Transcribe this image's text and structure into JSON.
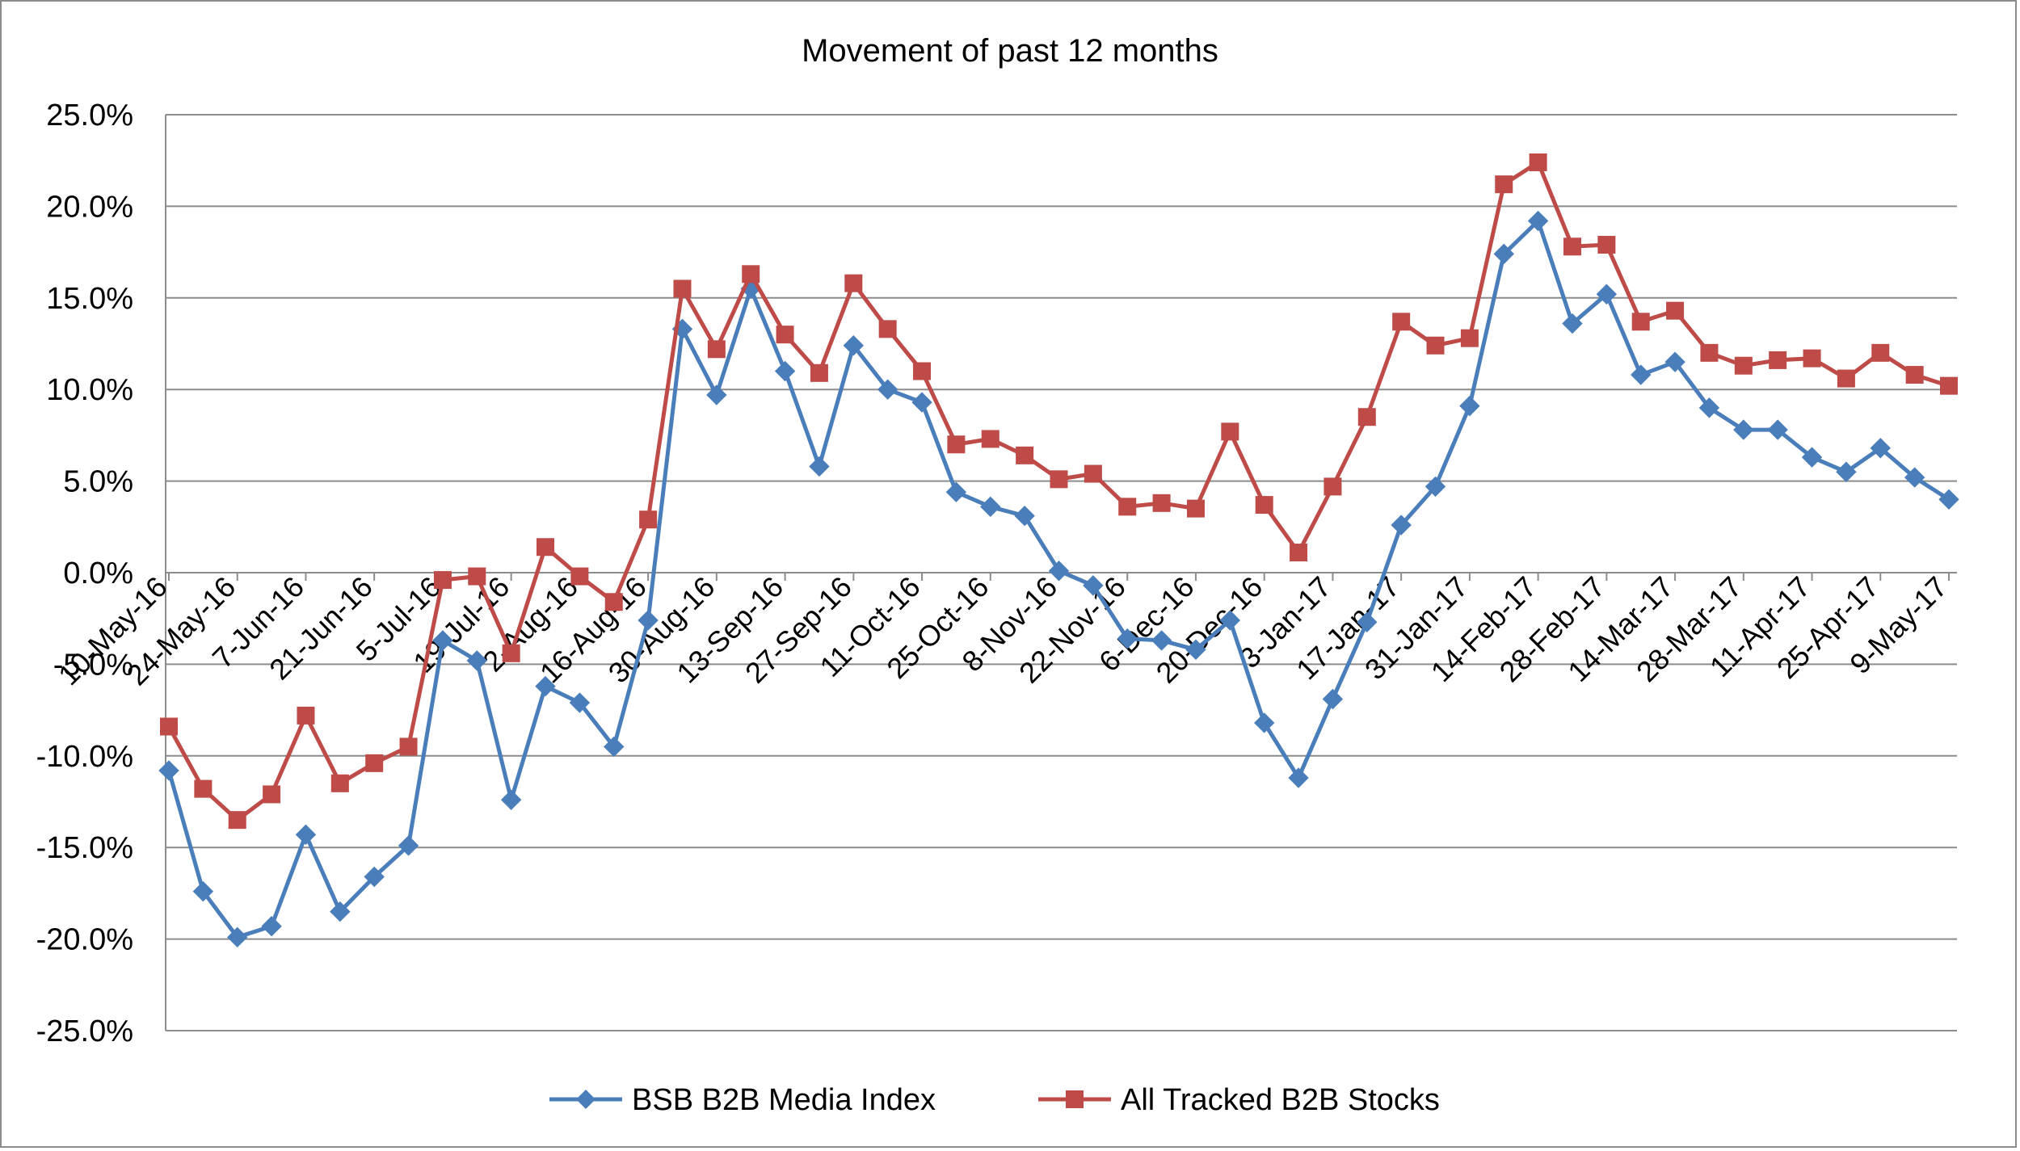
{
  "chart_data": {
    "type": "line",
    "title": "Movement of past 12 months",
    "xlabel": "",
    "ylabel": "",
    "ylim": [
      -25,
      25
    ],
    "ytick_step": 5,
    "ytick_labels": [
      "25.0%",
      "20.0%",
      "15.0%",
      "10.0%",
      "5.0%",
      "0.0%",
      "-5.0%",
      "-10.0%",
      "-15.0%",
      "-20.0%",
      "-25.0%"
    ],
    "x_tick_labels": [
      "10-May-16",
      "24-May-16",
      "7-Jun-16",
      "21-Jun-16",
      "5-Jul-16",
      "19-Jul-16",
      "2-Aug-16",
      "16-Aug-16",
      "30-Aug-16",
      "13-Sep-16",
      "27-Sep-16",
      "11-Oct-16",
      "25-Oct-16",
      "8-Nov-16",
      "22-Nov-16",
      "6-Dec-16",
      "20-Dec-16",
      "3-Jan-17",
      "17-Jan-17",
      "31-Jan-17",
      "14-Feb-17",
      "28-Feb-17",
      "14-Mar-17",
      "28-Mar-17",
      "11-Apr-17",
      "25-Apr-17",
      "9-May-17"
    ],
    "x": [
      "10-May-16",
      "17-May-16",
      "24-May-16",
      "31-May-16",
      "7-Jun-16",
      "14-Jun-16",
      "21-Jun-16",
      "28-Jun-16",
      "5-Jul-16",
      "12-Jul-16",
      "19-Jul-16",
      "26-Jul-16",
      "2-Aug-16",
      "9-Aug-16",
      "16-Aug-16",
      "23-Aug-16",
      "30-Aug-16",
      "6-Sep-16",
      "13-Sep-16",
      "20-Sep-16",
      "27-Sep-16",
      "4-Oct-16",
      "11-Oct-16",
      "18-Oct-16",
      "25-Oct-16",
      "1-Nov-16",
      "8-Nov-16",
      "15-Nov-16",
      "22-Nov-16",
      "29-Nov-16",
      "6-Dec-16",
      "13-Dec-16",
      "20-Dec-16",
      "27-Dec-16",
      "3-Jan-17",
      "10-Jan-17",
      "17-Jan-17",
      "24-Jan-17",
      "31-Jan-17",
      "7-Feb-17",
      "14-Feb-17",
      "21-Feb-17",
      "28-Feb-17",
      "7-Mar-17",
      "14-Mar-17",
      "21-Mar-17",
      "28-Mar-17",
      "4-Apr-17",
      "11-Apr-17",
      "18-Apr-17",
      "25-Apr-17",
      "2-May-17",
      "9-May-17"
    ],
    "series": [
      {
        "name": "BSB B2B Media Index",
        "color": "#4a7ebb",
        "marker": "diamond",
        "values": [
          -10.8,
          -17.4,
          -19.9,
          -19.3,
          -14.3,
          -18.5,
          -16.6,
          -14.9,
          -3.7,
          -4.8,
          -12.4,
          -6.2,
          -7.1,
          -9.5,
          -2.6,
          13.3,
          9.7,
          15.5,
          11.0,
          5.8,
          12.4,
          10.0,
          9.3,
          4.4,
          3.6,
          3.1,
          0.1,
          -0.7,
          -3.6,
          -3.7,
          -4.2,
          -2.6,
          -8.2,
          -11.2,
          -6.9,
          -2.7,
          2.6,
          4.7,
          9.1,
          17.4,
          19.2,
          13.6,
          15.2,
          10.8,
          11.5,
          9.0,
          7.8,
          7.8,
          6.3,
          5.5,
          6.8,
          5.2,
          4.0
        ]
      },
      {
        "name": "All Tracked B2B Stocks",
        "color": "#be4b48",
        "marker": "square",
        "values": [
          -8.4,
          -11.8,
          -13.5,
          -12.1,
          -7.8,
          -11.5,
          -10.4,
          -9.5,
          -0.4,
          -0.2,
          -4.4,
          1.4,
          -0.2,
          -1.6,
          2.9,
          15.5,
          12.2,
          16.3,
          13.0,
          10.9,
          15.8,
          13.3,
          11.0,
          7.0,
          7.3,
          6.4,
          5.1,
          5.4,
          3.6,
          3.8,
          3.5,
          7.7,
          3.7,
          1.1,
          4.7,
          8.5,
          13.7,
          12.4,
          12.8,
          21.2,
          22.4,
          17.8,
          17.9,
          13.7,
          14.3,
          12.0,
          11.3,
          11.6,
          11.7,
          10.6,
          12.0,
          10.8,
          10.2
        ]
      }
    ],
    "grid": true,
    "legend_position": "bottom"
  }
}
